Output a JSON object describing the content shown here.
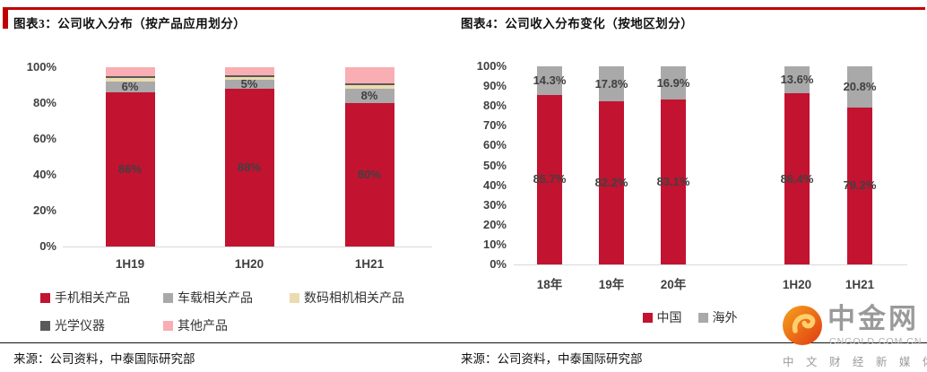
{
  "accent_color": "#c00000",
  "left_panel": {
    "title": "图表3：公司收入分布（按产品应用划分）",
    "source": "来源：公司资料，中泰国际研究部"
  },
  "right_panel": {
    "title": "图表4：公司收入分布变化（按地区划分）",
    "source": "来源：公司资料，中泰国际研究部"
  },
  "watermark": {
    "brand": "中金网",
    "domain": "CNGOLD.COM.CN",
    "tagline": "中 文 财 经 新 媒 体"
  },
  "chart_data": [
    {
      "type": "bar",
      "stacked": true,
      "title": "图表3：公司收入分布（按产品应用划分）",
      "categories": [
        "1H19",
        "1H20",
        "1H21"
      ],
      "series": [
        {
          "name": "手机相关产品",
          "color": "#c21330",
          "values": [
            86,
            88,
            80
          ],
          "labels": [
            "86%",
            "88%",
            "80%"
          ]
        },
        {
          "name": "车载相关产品",
          "color": "#a9a9a9",
          "values": [
            6,
            5,
            8
          ],
          "labels": [
            "6%",
            "5%",
            "8%"
          ]
        },
        {
          "name": "数码相机相关产品",
          "color": "#ebdbb0",
          "values": [
            2,
            1.5,
            2
          ],
          "labels": [
            "",
            "",
            ""
          ]
        },
        {
          "name": "光学仪器",
          "color": "#595959",
          "values": [
            1,
            1,
            1
          ],
          "labels": [
            "",
            "",
            ""
          ]
        },
        {
          "name": "其他产品",
          "color": "#f8aeb2",
          "values": [
            5,
            4.5,
            9
          ],
          "labels": [
            "",
            "",
            ""
          ]
        }
      ],
      "ylim": [
        0,
        100
      ],
      "yticks": [
        "0%",
        "20%",
        "40%",
        "60%",
        "80%",
        "100%"
      ],
      "grid": false,
      "legend_position": "bottom"
    },
    {
      "type": "bar",
      "stacked": true,
      "title": "图表4：公司收入分布变化（按地区划分）",
      "categories": [
        "18年",
        "19年",
        "20年",
        "1H20",
        "1H21"
      ],
      "series": [
        {
          "name": "中国",
          "color": "#c21330",
          "values": [
            85.7,
            82.2,
            83.1,
            86.4,
            79.2
          ],
          "labels": [
            "85.7%",
            "82.2%",
            "83.1%",
            "86.4%",
            "79.2%"
          ]
        },
        {
          "name": "海外",
          "color": "#a9a9a9",
          "values": [
            14.3,
            17.8,
            16.9,
            13.6,
            20.8
          ],
          "labels": [
            "14.3%",
            "17.8%",
            "16.9%",
            "13.6%",
            "20.8%"
          ]
        }
      ],
      "ylim": [
        0,
        100
      ],
      "yticks": [
        "0%",
        "10%",
        "20%",
        "30%",
        "40%",
        "50%",
        "60%",
        "70%",
        "80%",
        "90%",
        "100%"
      ],
      "grid": false,
      "legend_position": "bottom"
    }
  ]
}
